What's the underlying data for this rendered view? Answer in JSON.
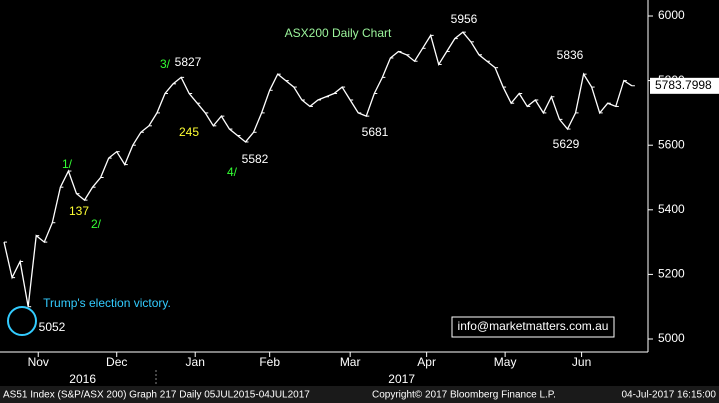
{
  "chart_data": {
    "type": "line",
    "title": "ASX200 Daily Chart",
    "values": [
      5300,
      5190,
      5240,
      5100,
      5320,
      5300,
      5360,
      5470,
      5520,
      5450,
      5430,
      5470,
      5500,
      5560,
      5580,
      5540,
      5600,
      5640,
      5660,
      5700,
      5760,
      5790,
      5810,
      5760,
      5730,
      5700,
      5660,
      5690,
      5650,
      5630,
      5610,
      5640,
      5700,
      5770,
      5820,
      5800,
      5780,
      5740,
      5720,
      5740,
      5750,
      5760,
      5780,
      5740,
      5700,
      5690,
      5760,
      5810,
      5870,
      5890,
      5880,
      5860,
      5900,
      5940,
      5850,
      5890,
      5930,
      5950,
      5920,
      5880,
      5860,
      5840,
      5780,
      5730,
      5760,
      5720,
      5740,
      5700,
      5750,
      5680,
      5650,
      5700,
      5820,
      5780,
      5700,
      5730,
      5720,
      5800,
      5784
    ],
    "color": "#ffffff",
    "ylim": [
      5000,
      6000
    ],
    "yticks": [
      5000,
      5200,
      5400,
      5600,
      5800,
      6000
    ],
    "xlim": [
      -0.5,
      80
    ],
    "xticks": [
      {
        "value": 4.25,
        "label": "Nov"
      },
      {
        "value": 14,
        "label": "Dec"
      },
      {
        "value": 23.75,
        "label": "Jan"
      },
      {
        "value": 33,
        "label": "Feb"
      },
      {
        "value": 43,
        "label": "Mar"
      },
      {
        "value": 52.5,
        "label": "Apr"
      },
      {
        "value": 62.25,
        "label": "May"
      },
      {
        "value": 71.75,
        "label": "Jun"
      }
    ],
    "years": [
      "2016",
      "2017"
    ],
    "last_value": 5783.7998,
    "annotations": [
      "5956",
      "5836",
      "5827",
      "3/",
      "245",
      "5681",
      "5582",
      "4/",
      "5629",
      "1/",
      "137",
      "2/",
      "5052",
      "Trump's election victory."
    ],
    "watermark": "info@marketmatters.com.au",
    "footer": [
      "AS51 Index (S&P/ASX 200) Graph 217  Daily 05JUL2015-04JUL2017",
      "Copyright© 2017 Bloomberg Finance L.P.",
      "04-Jul-2017 16:15:00"
    ]
  }
}
